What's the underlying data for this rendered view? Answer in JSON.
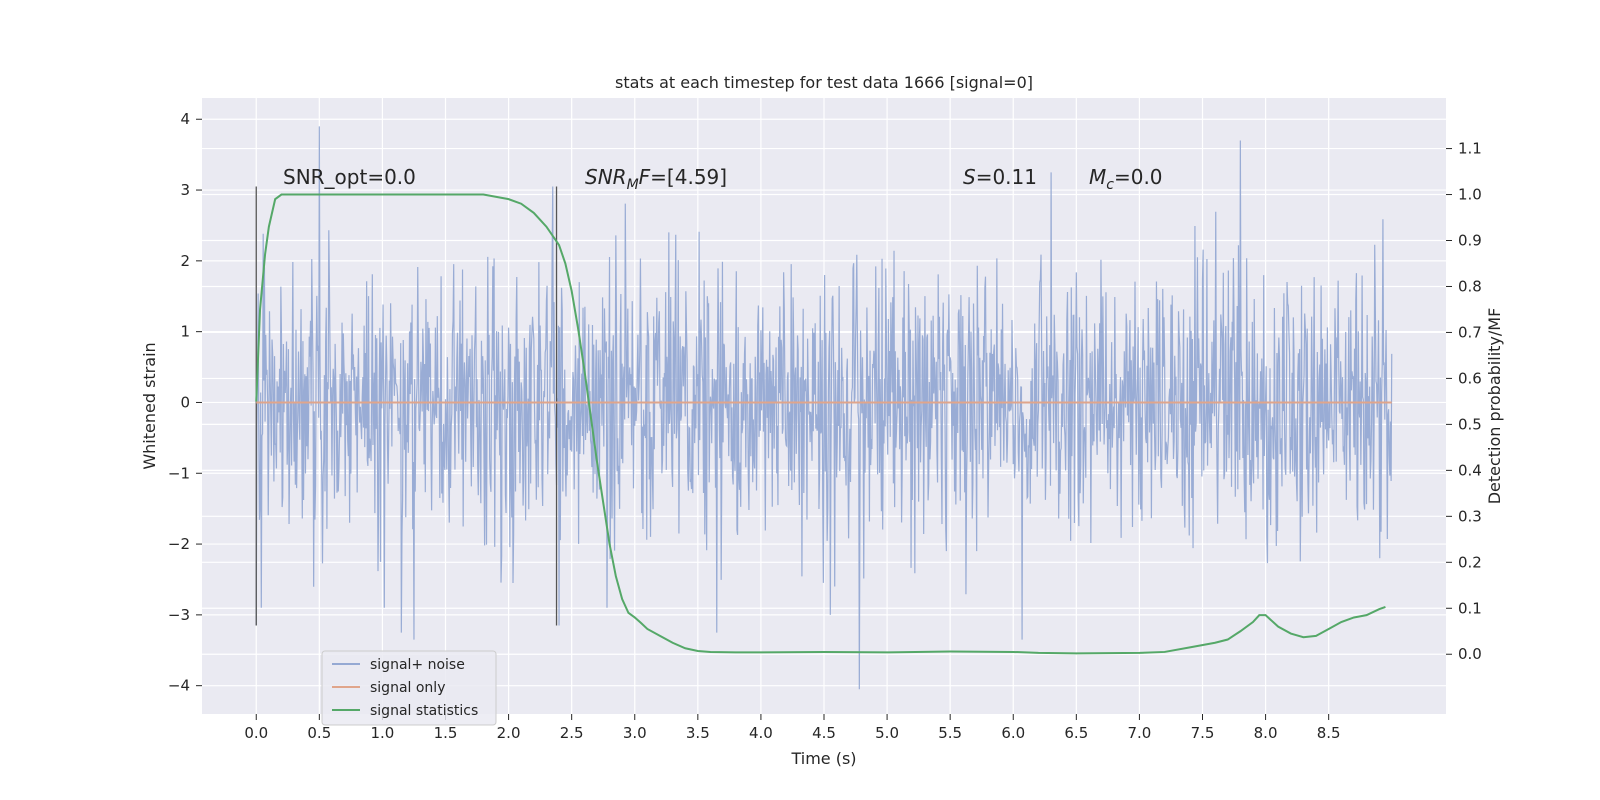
{
  "chart_data": {
    "type": "line",
    "title": "stats at each timestep for test data 1666 [signal=0]",
    "xlabel": "Time (s)",
    "ylabel": "Whitened strain",
    "y2label": "Detection probability/MF",
    "xlim": [
      -0.43,
      9.43
    ],
    "ylim": [
      -4.4,
      4.3
    ],
    "y2lim": [
      -0.13,
      1.21
    ],
    "x_ticks": [
      "0.0",
      "0.5",
      "1.0",
      "1.5",
      "2.0",
      "2.5",
      "3.0",
      "3.5",
      "4.0",
      "4.5",
      "5.0",
      "5.5",
      "6.0",
      "6.5",
      "7.0",
      "7.5",
      "8.0",
      "8.5"
    ],
    "y_ticks": [
      "4",
      "3",
      "2",
      "1",
      "0",
      "−1",
      "−2",
      "−3",
      "−4"
    ],
    "y2_ticks": [
      "1.1",
      "1.0",
      "0.9",
      "0.8",
      "0.7",
      "0.6",
      "0.5",
      "0.4",
      "0.3",
      "0.2",
      "0.1",
      "0.0"
    ],
    "grid": true,
    "legend_position": "lower-left",
    "annotations": {
      "snr_opt": "SNR_opt=0.0",
      "snr_mf_name": "SNR",
      "snr_mf_sub": "M",
      "snr_mf_name2": "F",
      "snr_mf_value": "=[4.59]",
      "s_name": "S",
      "s_value": "=0.11",
      "mc_name": "M",
      "mc_sub": "c",
      "mc_value": "=0.0"
    },
    "window_markers": [
      0.0,
      2.38
    ],
    "series": [
      {
        "name": "signal+ noise",
        "color": "#95a9d3",
        "axis": "left",
        "kind": "noise",
        "x_range": [
          0.0,
          9.0
        ],
        "sample_rate_hz": 200,
        "typical_range": [
          -2.3,
          2.3
        ],
        "peak_values": [
          [
            0.0,
            3.05
          ],
          [
            0.0,
            -3.15
          ],
          [
            0.5,
            3.9
          ],
          [
            1.25,
            -3.35
          ],
          [
            1.15,
            -3.25
          ],
          [
            3.65,
            -3.25
          ],
          [
            4.78,
            -4.05
          ],
          [
            4.55,
            -3.0
          ],
          [
            6.07,
            -3.35
          ],
          [
            7.8,
            3.7
          ],
          [
            6.3,
            3.25
          ],
          [
            2.35,
            3.05
          ],
          [
            2.4,
            -3.15
          ]
        ]
      },
      {
        "name": "signal only",
        "color": "#e0a58b",
        "axis": "left",
        "x": [
          0.0,
          9.0
        ],
        "y": [
          0.0,
          0.0
        ]
      },
      {
        "name": "signal statistics",
        "color": "#55a868",
        "axis": "right",
        "x": [
          0.0,
          0.03,
          0.07,
          0.1,
          0.15,
          0.2,
          0.3,
          0.5,
          1.0,
          1.5,
          1.8,
          2.0,
          2.1,
          2.2,
          2.3,
          2.4,
          2.45,
          2.5,
          2.55,
          2.6,
          2.65,
          2.7,
          2.75,
          2.8,
          2.85,
          2.9,
          2.95,
          3.0,
          3.05,
          3.1,
          3.2,
          3.3,
          3.4,
          3.5,
          3.6,
          3.8,
          4.0,
          4.5,
          5.0,
          5.5,
          6.0,
          6.2,
          6.5,
          7.0,
          7.2,
          7.4,
          7.6,
          7.7,
          7.8,
          7.9,
          7.95,
          8.0,
          8.1,
          8.2,
          8.3,
          8.4,
          8.5,
          8.6,
          8.7,
          8.8,
          8.9,
          8.95
        ],
        "y": [
          0.55,
          0.75,
          0.87,
          0.93,
          0.99,
          1.0,
          1.0,
          1.0,
          1.0,
          1.0,
          1.0,
          0.99,
          0.98,
          0.96,
          0.93,
          0.89,
          0.85,
          0.79,
          0.71,
          0.62,
          0.52,
          0.42,
          0.33,
          0.24,
          0.17,
          0.12,
          0.09,
          0.08,
          0.068,
          0.055,
          0.04,
          0.025,
          0.013,
          0.007,
          0.005,
          0.004,
          0.004,
          0.005,
          0.004,
          0.006,
          0.005,
          0.003,
          0.002,
          0.003,
          0.005,
          0.015,
          0.025,
          0.032,
          0.05,
          0.07,
          0.085,
          0.085,
          0.06,
          0.045,
          0.037,
          0.04,
          0.055,
          0.07,
          0.08,
          0.085,
          0.098,
          0.103
        ]
      }
    ]
  }
}
